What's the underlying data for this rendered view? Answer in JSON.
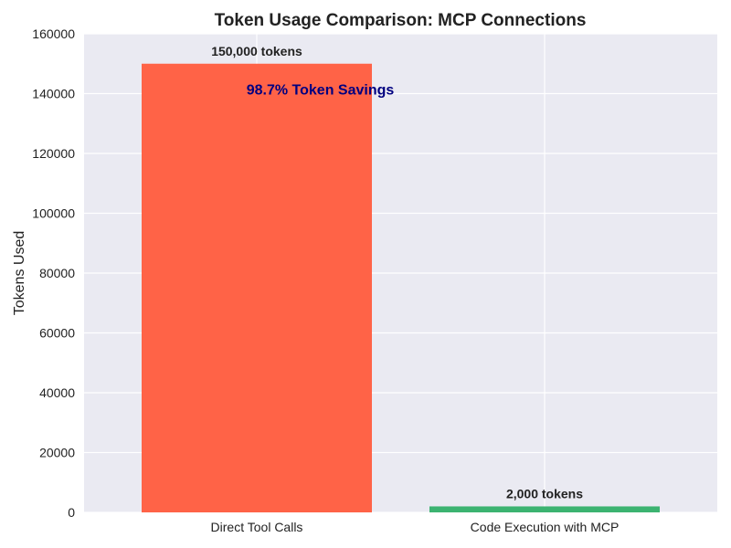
{
  "chart_data": {
    "type": "bar",
    "title": "Token Usage Comparison: MCP Connections",
    "xlabel": "",
    "ylabel": "Tokens Used",
    "categories": [
      "Direct Tool Calls",
      "Code Execution with MCP"
    ],
    "values": [
      150000,
      2000
    ],
    "value_labels": [
      "150,000 tokens",
      "2,000 tokens"
    ],
    "colors": [
      "#ff6347",
      "#3cb371"
    ],
    "ylim": [
      0,
      160000
    ],
    "yticks": [
      0,
      20000,
      40000,
      60000,
      80000,
      100000,
      120000,
      140000,
      160000
    ],
    "ytick_labels": [
      "0",
      "20000",
      "40000",
      "60000",
      "80000",
      "100000",
      "120000",
      "140000",
      "160000"
    ],
    "grid": true,
    "background_color": "#eaeaf2",
    "annotation": {
      "text": "98.7% Token Savings",
      "color": "#000080",
      "x_category_index": 0.5,
      "y": 140000
    }
  }
}
